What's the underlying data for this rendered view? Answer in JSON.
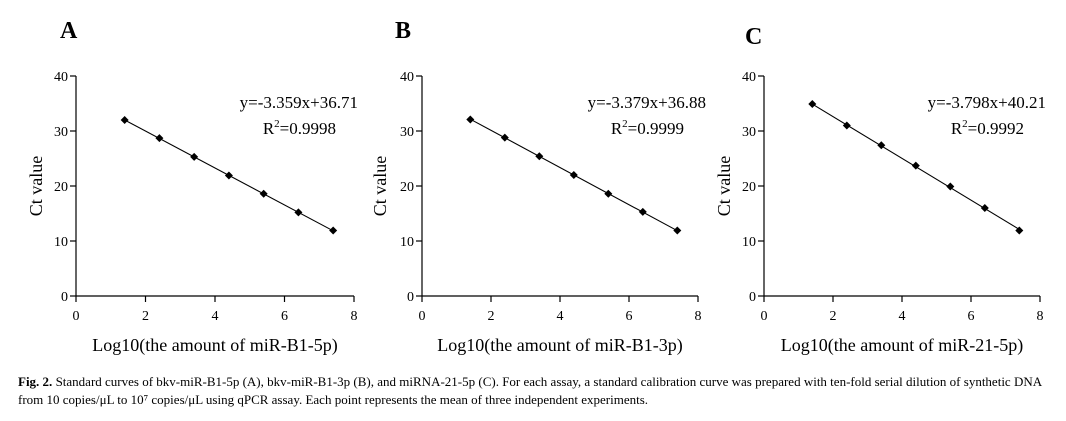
{
  "chart_data": [
    {
      "type": "scatter",
      "panel_label": "A",
      "xlabel": "Log10(the amount of miR-B1-5p)",
      "ylabel": "Ct value",
      "xlim": [
        0,
        8
      ],
      "ylim": [
        0,
        40
      ],
      "x_ticks": [
        "0",
        "2",
        "4",
        "6",
        "8"
      ],
      "y_ticks": [
        "0",
        "10",
        "20",
        "30",
        "40"
      ],
      "points": [
        {
          "x": 1.4,
          "y": 32.0
        },
        {
          "x": 2.4,
          "y": 28.7
        },
        {
          "x": 3.4,
          "y": 25.3
        },
        {
          "x": 4.4,
          "y": 21.9
        },
        {
          "x": 5.4,
          "y": 18.6
        },
        {
          "x": 6.4,
          "y": 15.2
        },
        {
          "x": 7.4,
          "y": 11.9
        }
      ],
      "fit": {
        "slope": -3.359,
        "intercept": 36.71
      },
      "equation": "y=-3.359x+36.71",
      "r2_prefix": "R",
      "r2_exp": "2",
      "r2_value": "=0.9998"
    },
    {
      "type": "scatter",
      "panel_label": "B",
      "xlabel": "Log10(the amount of miR-B1-3p)",
      "ylabel": "Ct value",
      "xlim": [
        0,
        8
      ],
      "ylim": [
        0,
        40
      ],
      "x_ticks": [
        "0",
        "2",
        "4",
        "6",
        "8"
      ],
      "y_ticks": [
        "0",
        "10",
        "20",
        "30",
        "40"
      ],
      "points": [
        {
          "x": 1.4,
          "y": 32.1
        },
        {
          "x": 2.4,
          "y": 28.8
        },
        {
          "x": 3.4,
          "y": 25.4
        },
        {
          "x": 4.4,
          "y": 22.0
        },
        {
          "x": 5.4,
          "y": 18.6
        },
        {
          "x": 6.4,
          "y": 15.3
        },
        {
          "x": 7.4,
          "y": 11.9
        }
      ],
      "fit": {
        "slope": -3.379,
        "intercept": 36.88
      },
      "equation": "y=-3.379x+36.88",
      "r2_prefix": "R",
      "r2_exp": "2",
      "r2_value": "=0.9999"
    },
    {
      "type": "scatter",
      "panel_label": "C",
      "xlabel": "Log10(the amount of miR-21-5p)",
      "ylabel": "Ct value",
      "xlim": [
        0,
        8
      ],
      "ylim": [
        0,
        40
      ],
      "x_ticks": [
        "0",
        "2",
        "4",
        "6",
        "8"
      ],
      "y_ticks": [
        "0",
        "10",
        "20",
        "30",
        "40"
      ],
      "points": [
        {
          "x": 1.4,
          "y": 34.9
        },
        {
          "x": 2.4,
          "y": 31.0
        },
        {
          "x": 3.4,
          "y": 27.4
        },
        {
          "x": 4.4,
          "y": 23.7
        },
        {
          "x": 5.4,
          "y": 19.9
        },
        {
          "x": 6.4,
          "y": 16.0
        },
        {
          "x": 7.4,
          "y": 11.9
        }
      ],
      "fit": {
        "slope": -3.798,
        "intercept": 40.21
      },
      "equation": "y=-3.798x+40.21",
      "r2_prefix": "R",
      "r2_exp": "2",
      "r2_value": "=0.9992"
    }
  ],
  "caption": {
    "label": "Fig. 2.",
    "text": " Standard curves of bkv-miR-B1-5p (A), bkv-miR-B1-3p (B), and miRNA-21-5p (C). For each assay, a standard calibration curve was prepared with ten-fold serial dilution of synthetic DNA from 10 copies/μL to 10⁷ copies/μL using qPCR assay. Each point represents the mean of three independent experiments."
  }
}
